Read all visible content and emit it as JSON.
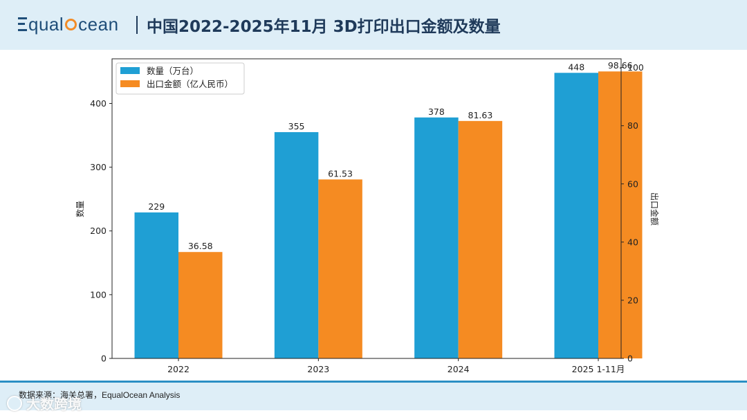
{
  "header": {
    "logo_text_1": "qual",
    "logo_text_2": "cean",
    "title": "中国2022-2025年11月 3D打印出口金额及数量"
  },
  "footer": {
    "source": "数据来源：海关总署，EqualOcean Analysis",
    "watermark": "大数跨境"
  },
  "colors": {
    "quantity": "#1f9fd4",
    "amount": "#f58b22",
    "header_bg": "#deeef7",
    "footer_line": "#2b8fc4"
  },
  "chart_data": {
    "type": "bar",
    "categories": [
      "2022",
      "2023",
      "2024",
      "2025 1-11月"
    ],
    "series": [
      {
        "name": "数量（万台）",
        "axis": "left",
        "values": [
          229,
          355,
          378,
          448
        ],
        "labels": [
          "229",
          "355",
          "378",
          "448"
        ]
      },
      {
        "name": "出口金额（亿人民币）",
        "axis": "right",
        "values": [
          36.58,
          61.53,
          81.63,
          98.66
        ],
        "labels": [
          "36.58",
          "61.53",
          "81.63",
          "98.66"
        ]
      }
    ],
    "ylabel_left": "数量",
    "ylabel_right": "出口金额",
    "ylim_left": [
      0,
      470
    ],
    "ylim_right": [
      0,
      103
    ],
    "yticks_left": [
      0,
      100,
      200,
      300,
      400
    ],
    "yticks_right": [
      0,
      20,
      40,
      60,
      80,
      100
    ],
    "legend": "top-left"
  }
}
